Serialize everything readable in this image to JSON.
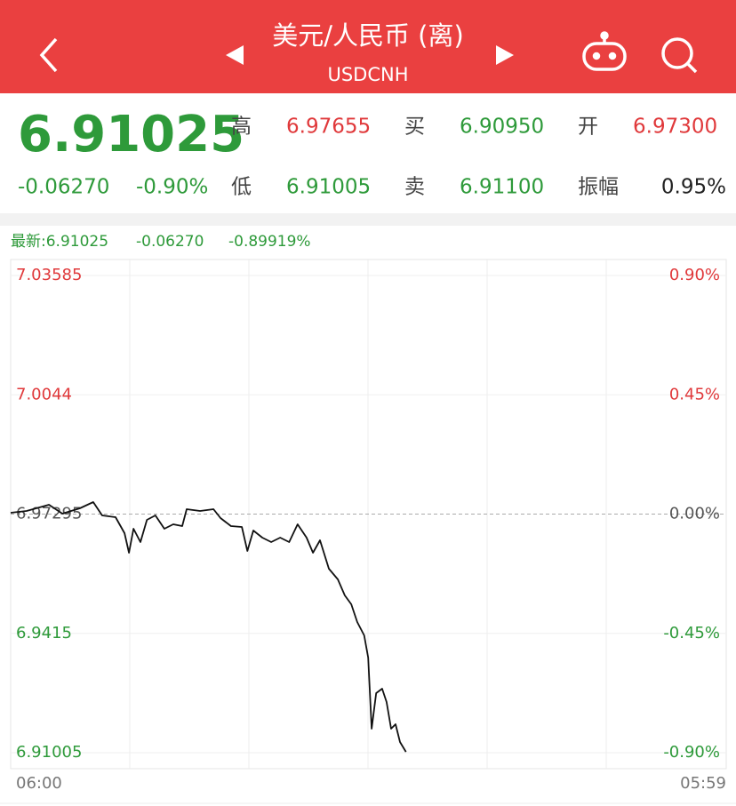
{
  "header": {
    "title": "美元/人民币 (离)",
    "subtitle": "USDCNH"
  },
  "quote": {
    "price": "6.91025",
    "change": "-0.06270",
    "change_pct": "-0.90%",
    "fields": [
      {
        "label": "高",
        "value": "6.97655"
      },
      {
        "label": "买",
        "value": "6.90950"
      },
      {
        "label": "开",
        "value": "6.97300"
      },
      {
        "label": "低",
        "value": "6.91005"
      },
      {
        "label": "卖",
        "value": "6.91100"
      },
      {
        "label": "振幅",
        "value": "0.95%"
      }
    ]
  },
  "latest": {
    "price": "最新:6.91025",
    "change": "-0.06270",
    "change_pct": "-0.89919%"
  },
  "chart_data": {
    "type": "line",
    "color": "#111111",
    "x": [
      0,
      32,
      77,
      104,
      139,
      166,
      184,
      211,
      229,
      238,
      247,
      261,
      274,
      291,
      309,
      327,
      345,
      354,
      381,
      408,
      422,
      443,
      465,
      476,
      488,
      506,
      524,
      542,
      560,
      577,
      595,
      608,
      622,
      640,
      658,
      672,
      685,
      697,
      711,
      719,
      726,
      735,
      747,
      756,
      765,
      774,
      783,
      795
    ],
    "values": [
      6.9733,
      6.97377,
      6.97541,
      6.97307,
      6.97447,
      6.97611,
      6.9726,
      6.97213,
      6.96791,
      6.96276,
      6.96908,
      6.96557,
      6.97143,
      6.9726,
      6.96908,
      6.97026,
      6.96979,
      6.97424,
      6.97377,
      6.97424,
      6.9719,
      6.96979,
      6.96955,
      6.96323,
      6.96862,
      6.96674,
      6.96557,
      6.96674,
      6.96557,
      6.97026,
      6.96674,
      6.96276,
      6.96604,
      6.95854,
      6.95573,
      6.95151,
      6.94917,
      6.94448,
      6.94097,
      6.93511,
      6.91637,
      6.92574,
      6.92691,
      6.9234,
      6.91637,
      6.91754,
      6.91285,
      6.91025
    ],
    "xlim": [
      0,
      1439
    ],
    "xticks": [
      {
        "value": 0,
        "label": "06:00"
      },
      {
        "value": 1439,
        "label": "05:59"
      }
    ],
    "ylim": [
      6.91005,
      7.03585
    ],
    "yticks": [
      7.03585,
      7.0044,
      6.97295,
      6.9415,
      6.91005
    ],
    "y2lim": [
      -0.9,
      0.9
    ],
    "y2ticks": [
      {
        "value": 0.9,
        "label": "0.90%"
      },
      {
        "value": 0.45,
        "label": "0.45%"
      },
      {
        "value": 0,
        "label": "0.00%"
      },
      {
        "value": -0.45,
        "label": "-0.45%"
      },
      {
        "value": -0.9,
        "label": "-0.90%"
      }
    ],
    "grid": true
  }
}
